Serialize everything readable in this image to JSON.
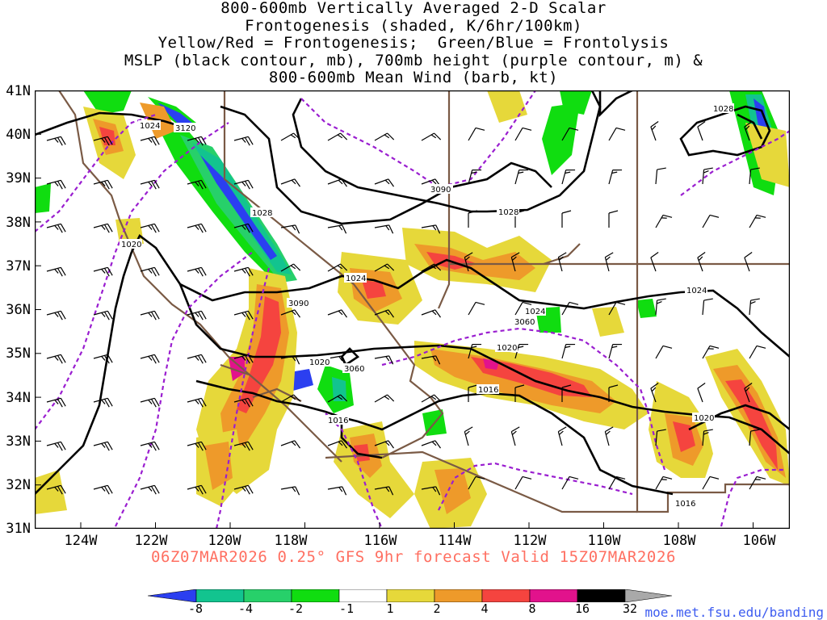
{
  "title_lines": [
    "800-600mb Vertically Averaged 2-D Scalar",
    "Frontogenesis (shaded, K/6hr/100km)",
    "Yellow/Red = Frontogenesis;  Green/Blue = Frontolysis",
    "MSLP (black contour, mb), 700mb height (purple contour, m) &",
    "800-600mb Mean Wind (barb, kt)"
  ],
  "lat_labels": [
    "41N",
    "40N",
    "39N",
    "38N",
    "37N",
    "36N",
    "35N",
    "34N",
    "33N",
    "32N",
    "31N"
  ],
  "lon_labels": [
    "124W",
    "122W",
    "120W",
    "118W",
    "116W",
    "114W",
    "112W",
    "110W",
    "108W",
    "106W"
  ],
  "contour_labels": {
    "mslp": [
      "1024",
      "1028",
      "1020",
      "1024",
      "1024",
      "1020",
      "1016",
      "1016",
      "1020",
      "1016",
      "1028",
      "1028"
    ],
    "height": [
      "3120",
      "3090",
      "3090",
      "3060",
      "3060"
    ]
  },
  "subtitle": "06Z07MAR2026 0.25° GFS 9hr forecast Valid 15Z07MAR2026",
  "colorbar": {
    "labels": [
      "-8",
      "-4",
      "-2",
      "-1",
      "1",
      "2",
      "4",
      "8",
      "16",
      "32"
    ],
    "colors": [
      "#2b3ff0",
      "#12c48f",
      "#27d06a",
      "#10dd10",
      "#ffffff",
      "#e6d83a",
      "#ee9a2a",
      "#f5443f",
      "#e2128c",
      "#000000",
      "#a9a9a9"
    ]
  },
  "credit": "moe.met.fsu.edu/banding"
}
